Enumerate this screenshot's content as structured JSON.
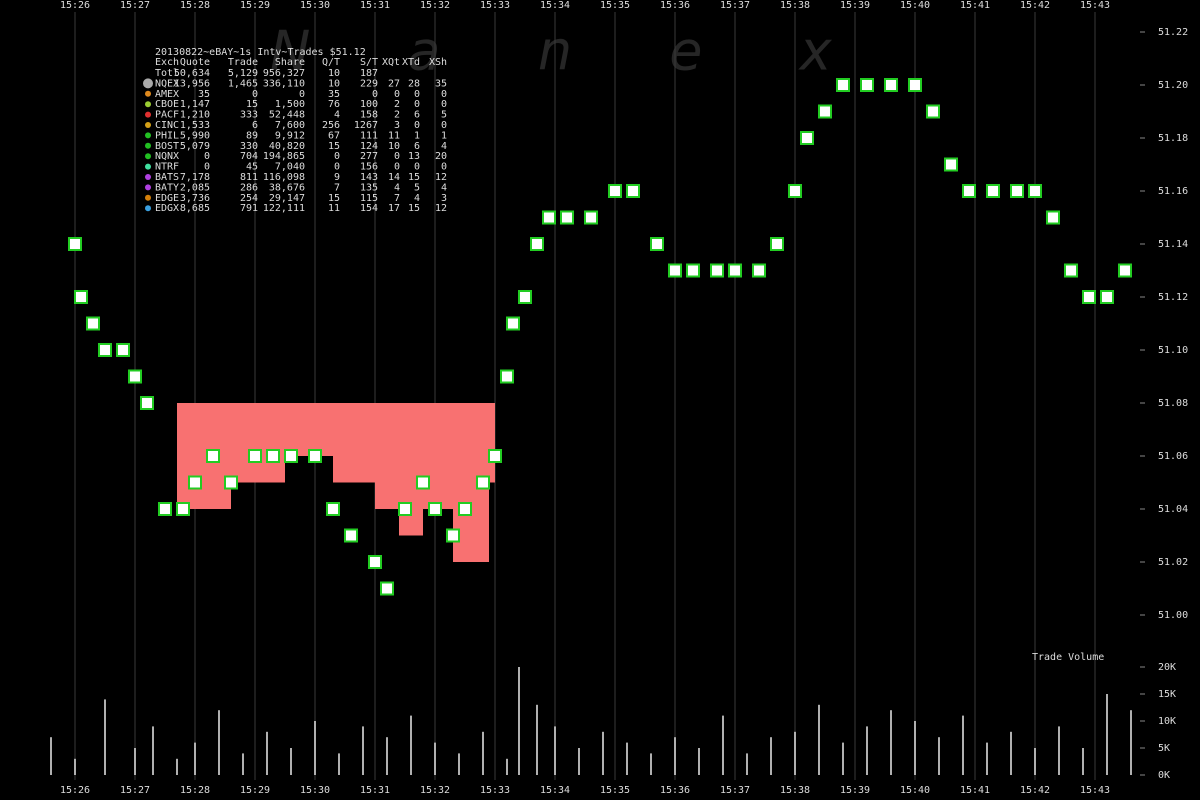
{
  "watermark": "N a n e x",
  "table": {
    "title": "20130822~eBAY~1s Intv~Trades $51.12",
    "header": [
      "Exch",
      "Quote",
      "Trade",
      "Share",
      "Q/T",
      "S/T",
      "XQt",
      "XTd",
      "XSh"
    ],
    "row_colors": [
      null,
      "#aaaaaa",
      "#e08a1e",
      "#9acd32",
      "#e03030",
      "#d4a017",
      "#22c022",
      "#22c022",
      "#22c022",
      "#40e0a0",
      "#b040e0",
      "#b040e0",
      "#d4800a",
      "#3aa0e0"
    ],
    "rows": [
      [
        "Totl",
        "50,634",
        "5,129",
        "956,327",
        "10",
        "187"
      ],
      [
        "NQEX",
        "13,956",
        "1,465",
        "336,110",
        "10",
        "229",
        "27",
        "28",
        "35"
      ],
      [
        "AMEX",
        "35",
        "0",
        "0",
        "35",
        "0",
        "0",
        "0",
        "0"
      ],
      [
        "CBOE",
        "1,147",
        "15",
        "1,500",
        "76",
        "100",
        "2",
        "0",
        "0"
      ],
      [
        "PACF",
        "1,210",
        "333",
        "52,448",
        "4",
        "158",
        "2",
        "6",
        "5"
      ],
      [
        "CINC",
        "1,533",
        "6",
        "7,600",
        "256",
        "1267",
        "3",
        "0",
        "0"
      ],
      [
        "PHIL",
        "5,990",
        "89",
        "9,912",
        "67",
        "111",
        "11",
        "1",
        "1"
      ],
      [
        "BOST",
        "5,079",
        "330",
        "40,820",
        "15",
        "124",
        "10",
        "6",
        "4"
      ],
      [
        "NQNX",
        "0",
        "704",
        "194,865",
        "0",
        "277",
        "0",
        "13",
        "20"
      ],
      [
        "NTRF",
        "0",
        "45",
        "7,040",
        "0",
        "156",
        "0",
        "0",
        "0"
      ],
      [
        "BATS",
        "7,178",
        "811",
        "116,098",
        "9",
        "143",
        "14",
        "15",
        "12"
      ],
      [
        "BATY",
        "2,085",
        "286",
        "38,676",
        "7",
        "135",
        "4",
        "5",
        "4"
      ],
      [
        "EDGE",
        "3,736",
        "254",
        "29,147",
        "15",
        "115",
        "7",
        "4",
        "3"
      ],
      [
        "EDGX",
        "8,685",
        "791",
        "122,111",
        "11",
        "154",
        "17",
        "15",
        "12"
      ]
    ]
  },
  "chart_data": [
    {
      "type": "scatter",
      "xlim": [
        24.75,
        43.75
      ],
      "ylim": [
        51.0,
        51.22
      ],
      "xticks": [
        {
          "value": 26,
          "label": "15:26"
        },
        {
          "value": 27,
          "label": "15:27"
        },
        {
          "value": 28,
          "label": "15:28"
        },
        {
          "value": 29,
          "label": "15:29"
        },
        {
          "value": 30,
          "label": "15:30"
        },
        {
          "value": 31,
          "label": "15:31"
        },
        {
          "value": 32,
          "label": "15:32"
        },
        {
          "value": 33,
          "label": "15:33"
        },
        {
          "value": 34,
          "label": "15:34"
        },
        {
          "value": 35,
          "label": "15:35"
        },
        {
          "value": 36,
          "label": "15:36"
        },
        {
          "value": 37,
          "label": "15:37"
        },
        {
          "value": 38,
          "label": "15:38"
        },
        {
          "value": 39,
          "label": "15:39"
        },
        {
          "value": 40,
          "label": "15:40"
        },
        {
          "value": 41,
          "label": "15:41"
        },
        {
          "value": 42,
          "label": "15:42"
        },
        {
          "value": 43,
          "label": "15:43"
        }
      ],
      "yticks": [
        {
          "value": 51.0,
          "label": "51.00"
        },
        51.02,
        51.04,
        51.06,
        51.08,
        {
          "value": 51.1,
          "label": "51.10"
        },
        51.12,
        51.14,
        51.16,
        51.18,
        {
          "value": 51.2,
          "label": "51.20"
        },
        51.22
      ],
      "spread": {
        "color": "#f87171",
        "bins": [
          27.7,
          28.6,
          29.5,
          30.3,
          31.0,
          31.4,
          31.8,
          32.3,
          32.9,
          33.0
        ],
        "high": [
          51.08,
          51.08,
          51.08,
          51.08,
          51.08,
          51.08,
          51.08,
          51.08,
          51.08
        ],
        "low": [
          51.04,
          51.05,
          51.06,
          51.05,
          51.04,
          51.03,
          51.04,
          51.02,
          51.05
        ]
      },
      "series": [
        {
          "color": "#22cc22",
          "x": [
            26.0,
            26.1,
            26.3,
            26.5,
            26.8,
            27.0,
            27.2,
            27.5,
            27.8,
            28.0,
            28.3,
            28.6,
            29.0,
            29.3,
            29.6,
            30.0,
            30.3,
            30.6,
            31.0,
            31.2,
            31.5,
            31.8,
            32.0,
            32.3,
            32.5,
            32.8,
            33.0,
            33.2,
            33.3,
            33.5,
            33.7,
            33.9,
            34.2,
            34.6,
            35.0,
            35.3,
            35.7,
            36.0,
            36.3,
            36.7,
            37.0,
            37.4,
            37.7,
            38.0,
            38.2,
            38.5,
            38.8,
            39.2,
            39.6,
            40.0,
            40.3,
            40.6,
            40.9,
            41.3,
            41.7,
            42.0,
            42.3,
            42.6,
            42.9,
            43.2,
            43.5
          ],
          "values": [
            51.14,
            51.12,
            51.11,
            51.1,
            51.1,
            51.09,
            51.08,
            51.04,
            51.04,
            51.05,
            51.06,
            51.05,
            51.06,
            51.06,
            51.06,
            51.06,
            51.04,
            51.03,
            51.02,
            51.01,
            51.04,
            51.05,
            51.04,
            51.03,
            51.04,
            51.05,
            51.06,
            51.09,
            51.11,
            51.12,
            51.14,
            51.15,
            51.15,
            51.15,
            51.16,
            51.16,
            51.14,
            51.13,
            51.13,
            51.13,
            51.13,
            51.13,
            51.14,
            51.16,
            51.18,
            51.19,
            51.2,
            51.2,
            51.2,
            51.2,
            51.19,
            51.17,
            51.16,
            51.16,
            51.16,
            51.16,
            51.15,
            51.13,
            51.12,
            51.12,
            51.13
          ]
        }
      ]
    },
    {
      "type": "bar",
      "title": "Trade Volume",
      "color": "#b0b0b0",
      "xlim": [
        24.75,
        43.75
      ],
      "ylim": [
        0,
        20000
      ],
      "xticks": [
        {
          "value": 26,
          "label": "15:26"
        },
        {
          "value": 27,
          "label": "15:27"
        },
        {
          "value": 28,
          "label": "15:28"
        },
        {
          "value": 29,
          "label": "15:29"
        },
        {
          "value": 30,
          "label": "15:30"
        },
        {
          "value": 31,
          "label": "15:31"
        },
        {
          "value": 32,
          "label": "15:32"
        },
        {
          "value": 33,
          "label": "15:33"
        },
        {
          "value": 34,
          "label": "15:34"
        },
        {
          "value": 35,
          "label": "15:35"
        },
        {
          "value": 36,
          "label": "15:36"
        },
        {
          "value": 37,
          "label": "15:37"
        },
        {
          "value": 38,
          "label": "15:38"
        },
        {
          "value": 39,
          "label": "15:39"
        },
        {
          "value": 40,
          "label": "15:40"
        },
        {
          "value": 41,
          "label": "15:41"
        },
        {
          "value": 42,
          "label": "15:42"
        },
        {
          "value": 43,
          "label": "15:43"
        }
      ],
      "yticks": [
        {
          "value": 0,
          "label": "0K"
        },
        {
          "value": 5000,
          "label": "5K"
        },
        {
          "value": 10000,
          "label": "10K"
        },
        {
          "value": 15000,
          "label": "15K"
        },
        {
          "value": 20000,
          "label": "20K"
        }
      ],
      "x": [
        25.6,
        26.0,
        26.5,
        27.0,
        27.3,
        27.7,
        28.0,
        28.4,
        28.8,
        29.2,
        29.6,
        30.0,
        30.4,
        30.8,
        31.2,
        31.6,
        32.0,
        32.4,
        32.8,
        33.2,
        33.4,
        33.7,
        34.0,
        34.4,
        34.8,
        35.2,
        35.6,
        36.0,
        36.4,
        36.8,
        37.2,
        37.6,
        38.0,
        38.4,
        38.8,
        39.2,
        39.6,
        40.0,
        40.4,
        40.8,
        41.2,
        41.6,
        42.0,
        42.4,
        42.8,
        43.2,
        43.6
      ],
      "values": [
        7000,
        3000,
        14000,
        5000,
        9000,
        3000,
        6000,
        12000,
        4000,
        8000,
        5000,
        10000,
        4000,
        9000,
        7000,
        11000,
        6000,
        4000,
        8000,
        3000,
        20000,
        13000,
        9000,
        5000,
        8000,
        6000,
        4000,
        7000,
        5000,
        11000,
        4000,
        7000,
        8000,
        13000,
        6000,
        9000,
        12000,
        10000,
        7000,
        11000,
        6000,
        8000,
        5000,
        9000,
        5000,
        15000,
        12000
      ]
    }
  ]
}
